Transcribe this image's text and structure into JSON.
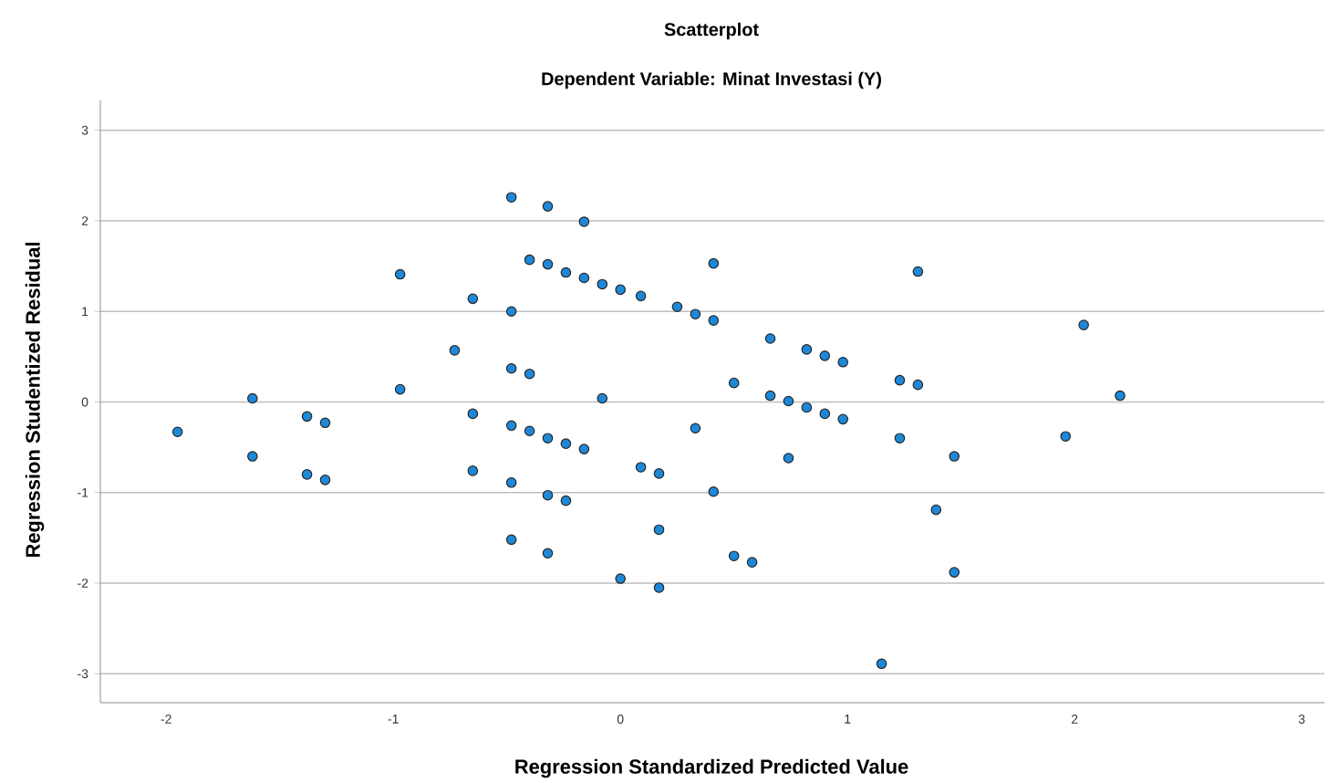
{
  "chart_data": {
    "type": "scatter",
    "title": "Scatterplot",
    "subtitle": "Dependent Variable: Minat Investasi (Y)",
    "xlabel": "Regression Standardized Predicted Value",
    "ylabel": "Regression Studentized Residual",
    "xlim": [
      -2.29,
      3.1
    ],
    "ylim": [
      -3.32,
      3.33
    ],
    "xticks": [
      -2,
      -1,
      0,
      1,
      2,
      3
    ],
    "yticks": [
      -3,
      -2,
      -1,
      0,
      1,
      2,
      3
    ],
    "grid": "y",
    "marker": "circle",
    "series": [
      {
        "color": "#1e88d8",
        "x": [
          -1.95,
          -1.62,
          -1.62,
          -1.38,
          -1.3,
          -1.38,
          -1.3,
          -0.97,
          -0.97,
          -0.73,
          -0.65,
          -0.65,
          -0.65,
          -0.48,
          -0.48,
          -0.48,
          -0.4,
          -0.4,
          -0.48,
          -0.4,
          -0.48,
          -0.48,
          -0.32,
          -0.16,
          -0.32,
          -0.24,
          -0.16,
          -0.08,
          0.0,
          0.09,
          0.25,
          0.33,
          0.41,
          0.41,
          0.66,
          0.82,
          0.9,
          0.98,
          1.23,
          1.31,
          1.31,
          -0.08,
          0.5,
          0.66,
          0.74,
          0.82,
          0.9,
          0.98,
          0.33,
          1.23,
          1.47,
          -0.32,
          -0.24,
          -0.16,
          0.09,
          0.17,
          0.74,
          -0.32,
          -0.24,
          0.41,
          1.39,
          0.17,
          -0.32,
          0.5,
          0.58,
          0.0,
          0.17,
          1.15,
          1.47,
          2.04,
          2.2,
          1.96
        ],
        "values": [
          -0.33,
          0.04,
          -0.6,
          -0.16,
          -0.23,
          -0.8,
          -0.86,
          1.41,
          0.14,
          0.57,
          1.14,
          -0.13,
          -0.76,
          2.26,
          1.0,
          0.37,
          0.31,
          1.57,
          -0.26,
          -0.32,
          -0.89,
          -1.52,
          2.16,
          1.99,
          1.52,
          1.43,
          1.37,
          1.3,
          1.24,
          1.17,
          1.05,
          0.97,
          0.9,
          1.53,
          0.7,
          0.58,
          0.51,
          0.44,
          0.24,
          0.19,
          1.44,
          0.04,
          0.21,
          0.07,
          0.01,
          -0.06,
          -0.13,
          -0.19,
          -0.29,
          -0.4,
          -0.6,
          -0.4,
          -0.46,
          -0.52,
          -0.72,
          -0.79,
          -0.62,
          -1.03,
          -1.09,
          -0.99,
          -1.19,
          -1.41,
          -1.67,
          -1.7,
          -1.77,
          -1.95,
          -2.05,
          -2.89,
          -1.88,
          0.85,
          0.07,
          -0.38
        ]
      }
    ]
  }
}
